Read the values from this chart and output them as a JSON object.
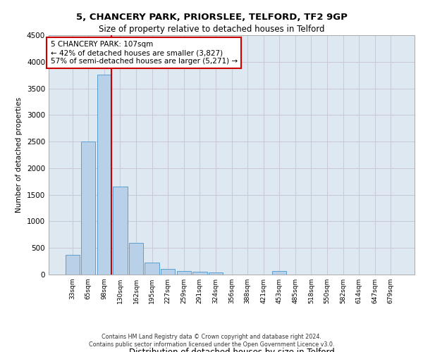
{
  "title1": "5, CHANCERY PARK, PRIORSLEE, TELFORD, TF2 9GP",
  "title2": "Size of property relative to detached houses in Telford",
  "xlabel": "Distribution of detached houses by size in Telford",
  "ylabel": "Number of detached properties",
  "categories": [
    "33sqm",
    "65sqm",
    "98sqm",
    "130sqm",
    "162sqm",
    "195sqm",
    "227sqm",
    "259sqm",
    "291sqm",
    "324sqm",
    "356sqm",
    "388sqm",
    "421sqm",
    "453sqm",
    "485sqm",
    "518sqm",
    "550sqm",
    "582sqm",
    "614sqm",
    "647sqm",
    "679sqm"
  ],
  "values": [
    370,
    2500,
    3760,
    1650,
    590,
    220,
    110,
    60,
    50,
    40,
    0,
    0,
    0,
    60,
    0,
    0,
    0,
    0,
    0,
    0,
    0
  ],
  "bar_color": "#b8d0e8",
  "bar_edge_color": "#5a9fd4",
  "vline_color": "#cc0000",
  "annotation_text": "5 CHANCERY PARK: 107sqm\n← 42% of detached houses are smaller (3,827)\n57% of semi-detached houses are larger (5,271) →",
  "annotation_box_color": "#ffffff",
  "annotation_box_edge_color": "#cc0000",
  "ylim": [
    0,
    4500
  ],
  "yticks": [
    0,
    500,
    1000,
    1500,
    2000,
    2500,
    3000,
    3500,
    4000,
    4500
  ],
  "grid_color": "#c8c8d8",
  "bg_color": "#dde8f0",
  "footer1": "Contains HM Land Registry data © Crown copyright and database right 2024.",
  "footer2": "Contains public sector information licensed under the Open Government Licence v3.0."
}
